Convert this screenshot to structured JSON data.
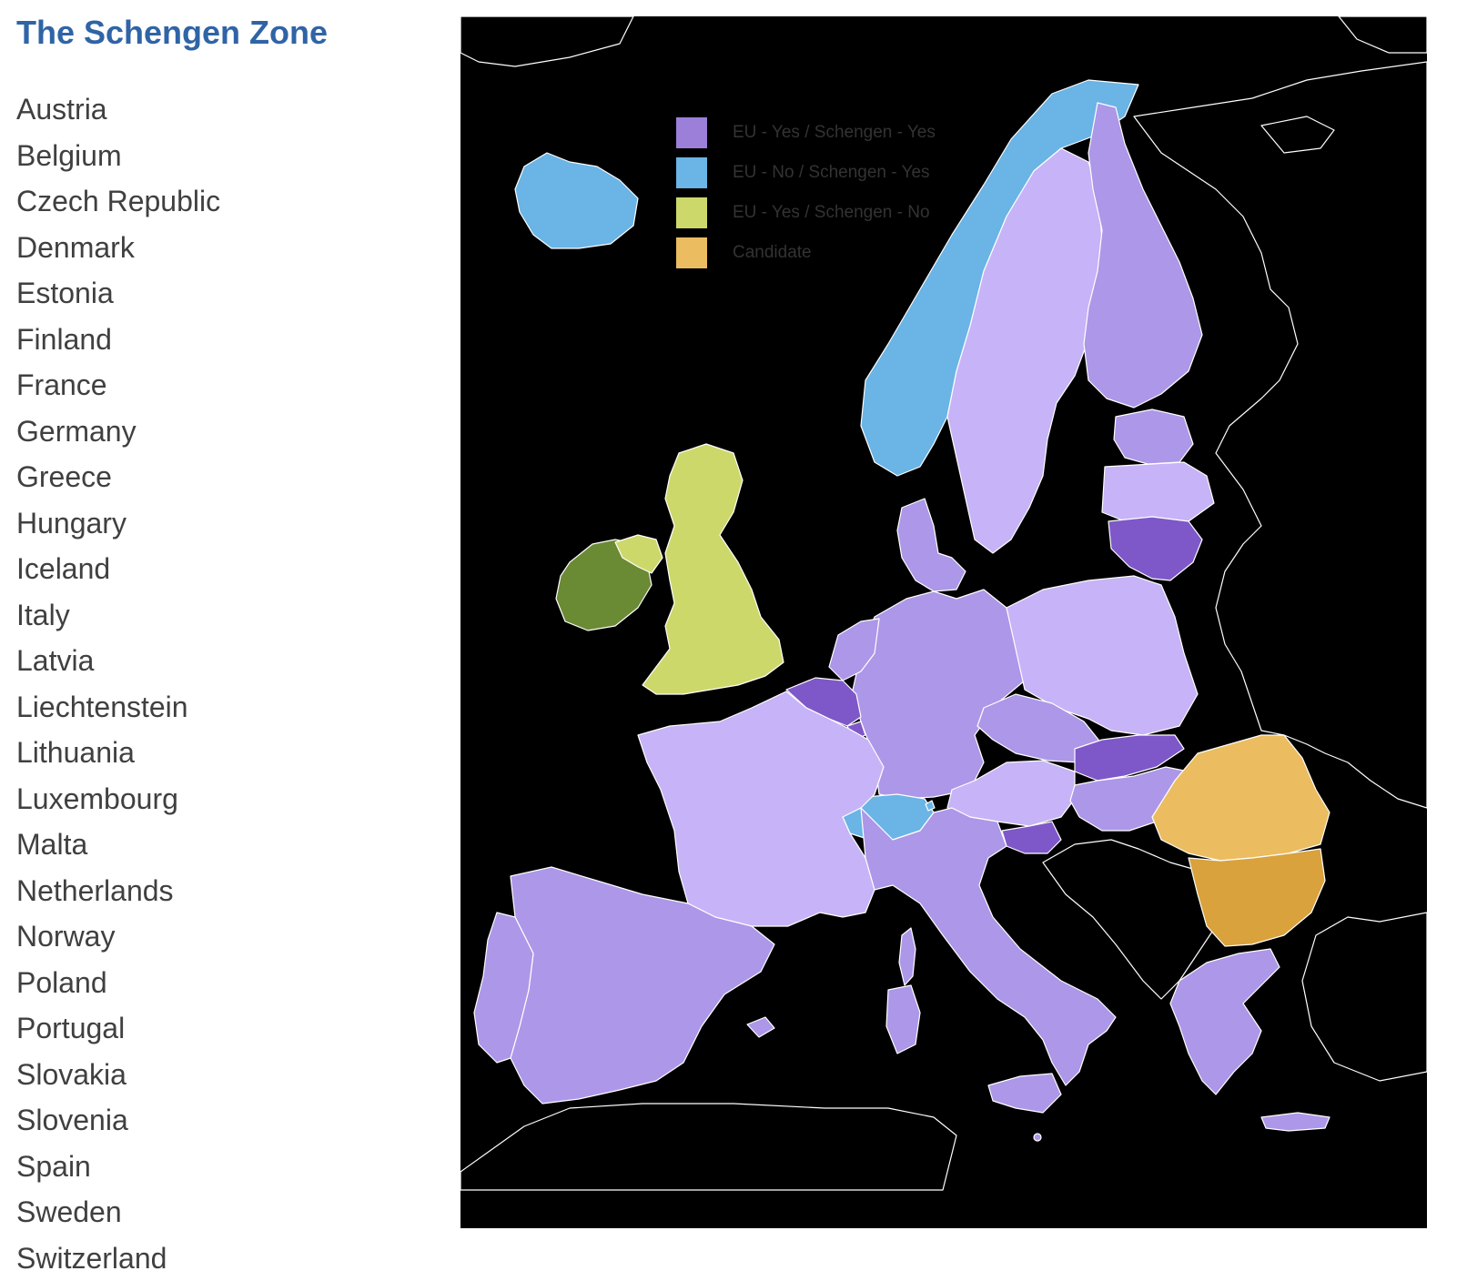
{
  "title": "The Schengen Zone",
  "countries": [
    "Austria",
    "Belgium",
    "Czech Republic",
    "Denmark",
    "Estonia",
    "Finland",
    "France",
    "Germany",
    "Greece",
    "Hungary",
    "Iceland",
    "Italy",
    "Latvia",
    "Liechtenstein",
    "Lithuania",
    "Luxembourg",
    "Malta",
    "Netherlands",
    "Norway",
    "Poland",
    "Portugal",
    "Slovakia",
    "Slovenia",
    "Spain",
    "Sweden",
    "Switzerland"
  ],
  "legend": [
    {
      "label": "EU - Yes / Schengen - Yes",
      "color": "#9b7fd9"
    },
    {
      "label": "EU - No / Schengen - Yes",
      "color": "#6ab4e6"
    },
    {
      "label": "EU - Yes / Schengen - No",
      "color": "#cdd86a"
    },
    {
      "label": "Candidate",
      "color": "#ebbd60"
    }
  ],
  "colors": {
    "title": "#2f64a6",
    "list_text": "#404040",
    "non_member": "#dadada",
    "sea": "#ffffff",
    "ireland": "#6b8a34",
    "bulgaria": "#d9a23d",
    "eu_schengen_light": "#c7b3f7",
    "eu_schengen_mid": "#ad97e8",
    "eu_schengen_dark": "#7e58c8"
  }
}
